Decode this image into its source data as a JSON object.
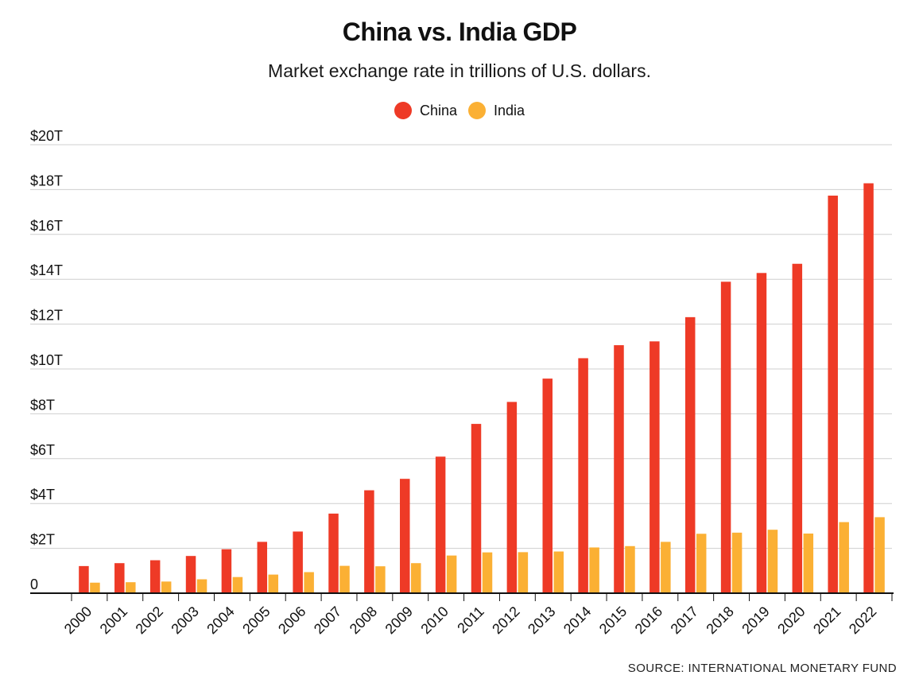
{
  "chart_data": {
    "type": "bar",
    "title": "China vs. India GDP",
    "subtitle": "Market exchange rate in trillions of U.S. dollars.",
    "xlabel": "",
    "ylabel": "",
    "ylim": [
      0,
      20
    ],
    "yticks": [
      {
        "value": 0,
        "label": "0"
      },
      {
        "value": 2,
        "label": "$2T"
      },
      {
        "value": 4,
        "label": "$4T"
      },
      {
        "value": 6,
        "label": "$6T"
      },
      {
        "value": 8,
        "label": "$8T"
      },
      {
        "value": 10,
        "label": "$10T"
      },
      {
        "value": 12,
        "label": "$12T"
      },
      {
        "value": 14,
        "label": "$14T"
      },
      {
        "value": 16,
        "label": "$16T"
      },
      {
        "value": 18,
        "label": "$18T"
      },
      {
        "value": 20,
        "label": "$20T"
      }
    ],
    "grid": true,
    "legend_position": "top-center",
    "categories": [
      "2000",
      "2001",
      "2002",
      "2003",
      "2004",
      "2005",
      "2006",
      "2007",
      "2008",
      "2009",
      "2010",
      "2011",
      "2012",
      "2013",
      "2014",
      "2015",
      "2016",
      "2017",
      "2018",
      "2019",
      "2020",
      "2021",
      "2022"
    ],
    "series": [
      {
        "name": "China",
        "color": "#ee3a26",
        "values": [
          1.21,
          1.34,
          1.47,
          1.66,
          1.96,
          2.29,
          2.75,
          3.55,
          4.59,
          5.1,
          6.09,
          7.55,
          8.53,
          9.57,
          10.48,
          11.06,
          11.23,
          12.31,
          13.89,
          14.28,
          14.69,
          17.73,
          18.28
        ]
      },
      {
        "name": "India",
        "color": "#fbb034",
        "values": [
          0.47,
          0.49,
          0.52,
          0.62,
          0.72,
          0.83,
          0.94,
          1.22,
          1.2,
          1.34,
          1.68,
          1.82,
          1.83,
          1.86,
          2.04,
          2.1,
          2.29,
          2.65,
          2.7,
          2.83,
          2.66,
          3.17,
          3.39
        ]
      }
    ],
    "source": "SOURCE: INTERNATIONAL MONETARY FUND"
  }
}
